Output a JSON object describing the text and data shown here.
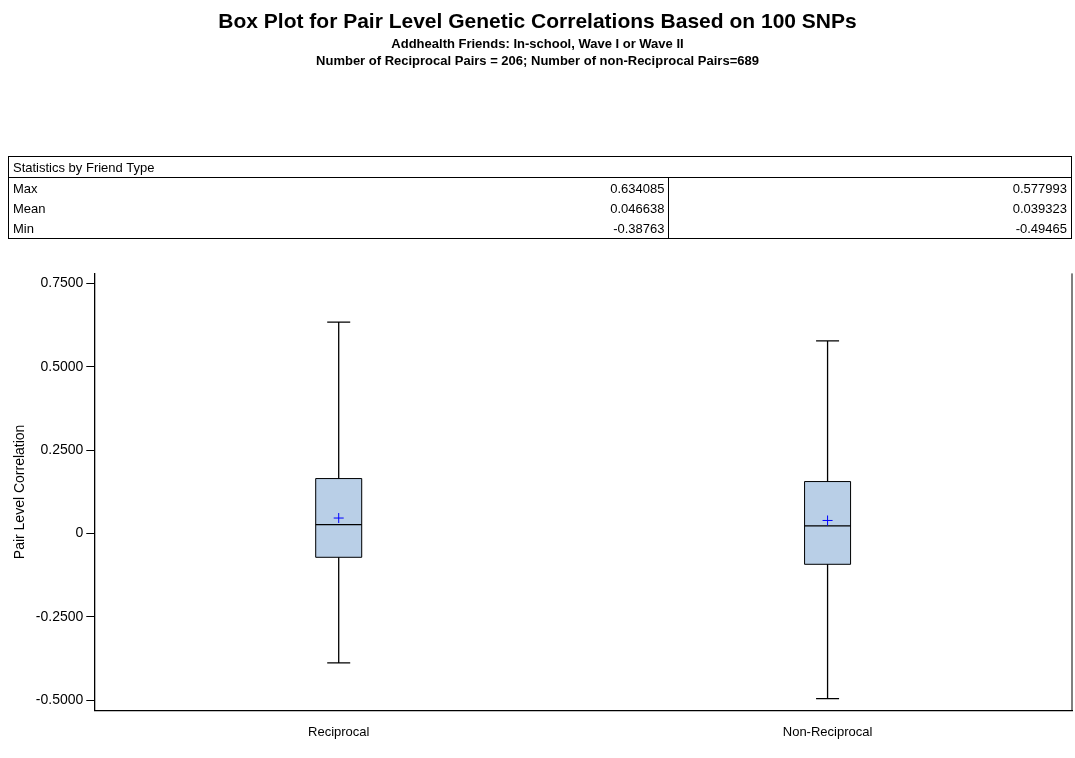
{
  "chart_data": {
    "type": "box",
    "title": "Box Plot for Pair Level Genetic Correlations Based on 100 SNPs",
    "subtitle": "Addhealth Friends: In-school, Wave I or Wave II\nNumber of Reciprocal Pairs = 206; Number of non-Reciprocal Pairs=689",
    "ylabel": "Pair Level Correlation",
    "categories": [
      "Reciprocal",
      "Non-Reciprocal"
    ],
    "series": [
      {
        "color": "#b9cfe7",
        "boxes": [
          {
            "low": -0.38763,
            "q1": -0.071,
            "median": 0.027,
            "q3": 0.165,
            "high": 0.634085,
            "mean": 0.046638
          },
          {
            "low": -0.49465,
            "q1": -0.092,
            "median": 0.023,
            "q3": 0.156,
            "high": 0.577993,
            "mean": 0.039323
          }
        ]
      }
    ],
    "ylim": [
      -0.53,
      0.78
    ],
    "yticks": [
      {
        "value": -0.5,
        "label": "-0.5000"
      },
      {
        "value": -0.25,
        "label": "-0.2500"
      },
      0,
      {
        "value": 0.25,
        "label": "0.2500"
      },
      {
        "value": 0.5,
        "label": "0.5000"
      },
      {
        "value": 0.75,
        "label": "0.7500"
      }
    ],
    "grid": false,
    "legend": false,
    "annotations": [
      "Statistics by Friend Type",
      "Max",
      "0.634085",
      "0.577993",
      "Mean",
      "0.046638",
      "0.039323",
      "Min",
      "-0.38763",
      "-0.49465"
    ]
  }
}
